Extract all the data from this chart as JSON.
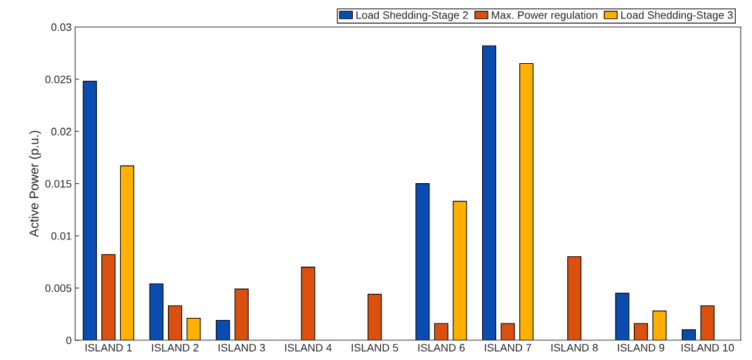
{
  "chart_data": {
    "type": "bar",
    "ylabel": "Active Power (p.u.)",
    "categories": [
      "ISLAND 1",
      "ISLAND 2",
      "ISLAND 3",
      "ISLAND 4",
      "ISLAND 5",
      "ISLAND 6",
      "ISLAND 7",
      "ISLAND 8",
      "ISLAND 9",
      "ISLAND 10"
    ],
    "series": [
      {
        "name": "Load Shedding-Stage 2",
        "color": "#0a4cb0",
        "values": [
          0.0248,
          0.0054,
          0.0019,
          null,
          null,
          0.015,
          0.0282,
          null,
          0.0045,
          0.001
        ]
      },
      {
        "name": "Max. Power regulation",
        "color": "#d9500f",
        "values": [
          0.0082,
          0.0033,
          0.0049,
          0.007,
          0.0044,
          0.0016,
          0.0016,
          0.008,
          0.0016,
          0.0033
        ]
      },
      {
        "name": "Load Shedding-Stage 3",
        "color": "#ffb000",
        "values": [
          0.0167,
          0.0021,
          null,
          null,
          null,
          0.0133,
          0.0265,
          null,
          0.0028,
          null
        ]
      }
    ],
    "ylim": [
      0,
      0.03
    ],
    "yticks": [
      0,
      0.005,
      0.01,
      0.015,
      0.02,
      0.025,
      0.03
    ],
    "grid": false,
    "legend": "top right"
  }
}
